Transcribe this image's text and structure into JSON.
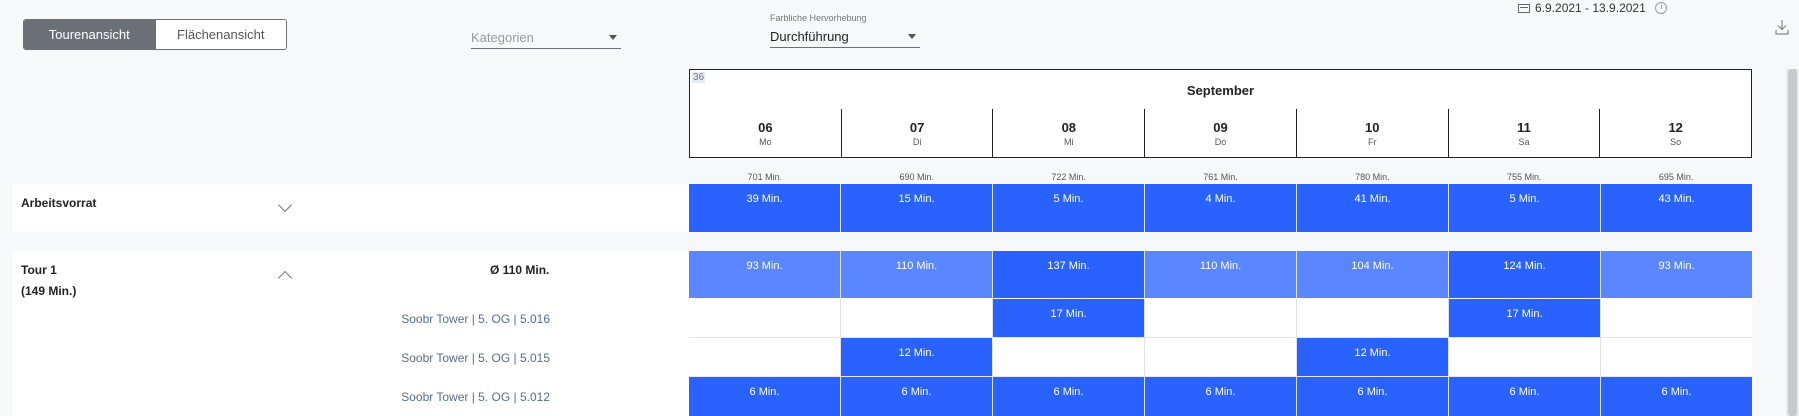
{
  "view_toggle": {
    "active": "Tourenansicht",
    "inactive": "Flächenansicht"
  },
  "kategorien": {
    "placeholder": "Kategorien"
  },
  "farbliche": {
    "label": "Farbliche Hervorhebung",
    "value": "Durchführung"
  },
  "date_range": "6.9.2021 - 13.9.2021",
  "icons": {
    "calendar": "calendar-icon",
    "history": "history-icon",
    "download": "download-icon"
  },
  "calendar": {
    "week": "36",
    "month": "September",
    "days": [
      {
        "num": "06",
        "dow": "Mo"
      },
      {
        "num": "07",
        "dow": "Di"
      },
      {
        "num": "08",
        "dow": "Mi"
      },
      {
        "num": "09",
        "dow": "Do"
      },
      {
        "num": "10",
        "dow": "Fr"
      },
      {
        "num": "11",
        "dow": "Sa"
      },
      {
        "num": "12",
        "dow": "So"
      }
    ],
    "totals": [
      "701 Min.",
      "690 Min.",
      "722 Min.",
      "761 Min.",
      "780 Min.",
      "755 Min.",
      "695 Min."
    ]
  },
  "arbeitsvorrat": {
    "label": "Arbeitsvorrat",
    "cells": [
      "39 Min.",
      "15 Min.",
      "5 Min.",
      "4 Min.",
      "41 Min.",
      "5 Min.",
      "43 Min."
    ]
  },
  "tour1": {
    "label": "Tour 1",
    "sub": "(149 Min.)",
    "avg": "Ø 110 Min.",
    "cells": [
      "93 Min.",
      "110 Min.",
      "137 Min.",
      "110 Min.",
      "104 Min.",
      "124 Min.",
      "93 Min."
    ],
    "shades": [
      "light",
      "light",
      "strong",
      "light",
      "light",
      "strong",
      "light"
    ]
  },
  "rooms": [
    {
      "label": "Soobr Tower | 5. OG | 5.016",
      "cells": [
        "",
        "",
        "17 Min.",
        "",
        "",
        "17 Min.",
        ""
      ]
    },
    {
      "label": "Soobr Tower | 5. OG | 5.015",
      "cells": [
        "",
        "12 Min.",
        "",
        "",
        "12 Min.",
        "",
        ""
      ]
    },
    {
      "label": "Soobr Tower | 5. OG | 5.012",
      "cells": [
        "6 Min.",
        "6 Min.",
        "6 Min.",
        "6 Min.",
        "6 Min.",
        "6 Min.",
        "6 Min."
      ]
    }
  ],
  "colors": {
    "strong": "#2962ff",
    "light": "#5a86ff",
    "toggle_active": "#6b6f76"
  }
}
